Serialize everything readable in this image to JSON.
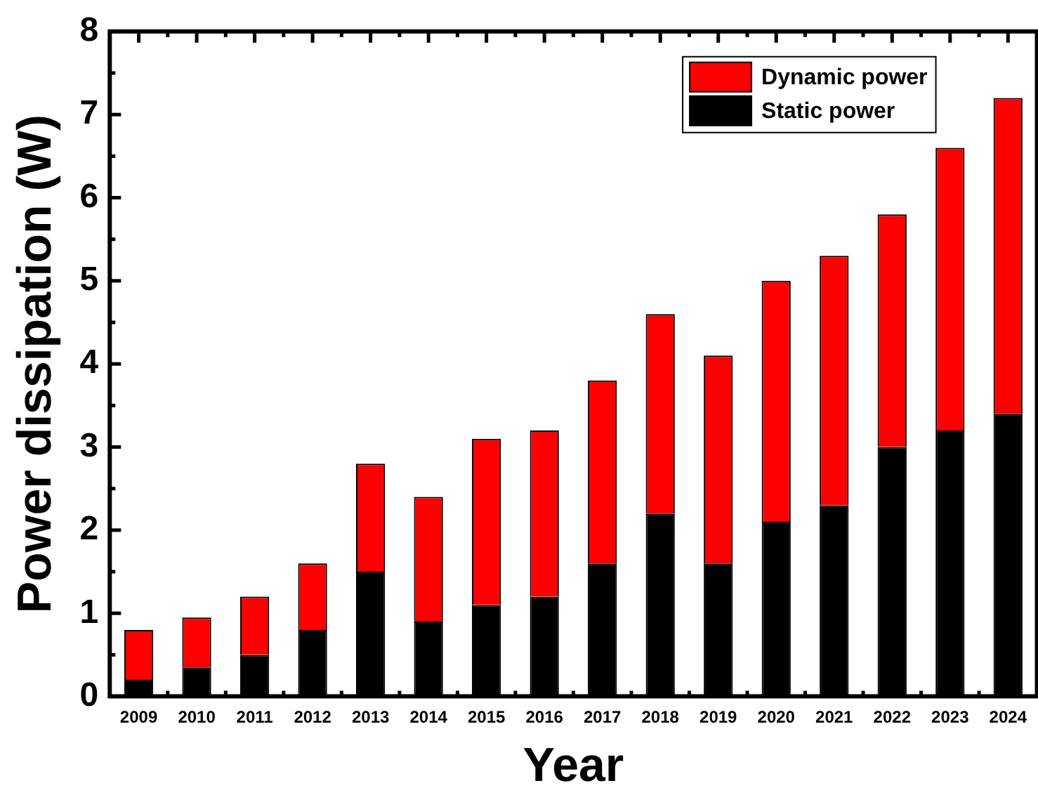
{
  "chart_data": {
    "type": "bar",
    "xlabel": "Year",
    "ylabel": "Power dissipation (W)",
    "categories": [
      "2009",
      "2010",
      "2011",
      "2012",
      "2013",
      "2014",
      "2015",
      "2016",
      "2017",
      "2018",
      "2019",
      "2020",
      "2021",
      "2022",
      "2023",
      "2024"
    ],
    "stacked": true,
    "series": [
      {
        "name": "Static power",
        "color": "#000000",
        "values": [
          0.2,
          0.35,
          0.5,
          0.8,
          1.5,
          0.9,
          1.1,
          1.2,
          1.6,
          2.2,
          1.6,
          2.1,
          2.3,
          3.0,
          3.2,
          3.4
        ]
      },
      {
        "name": "Dynamic power",
        "color": "#ff0000",
        "values": [
          0.6,
          0.6,
          0.7,
          0.8,
          1.3,
          1.5,
          2.0,
          2.0,
          2.2,
          2.4,
          2.5,
          2.9,
          3.0,
          2.8,
          3.4,
          3.8
        ]
      }
    ],
    "ylim": [
      0,
      8
    ],
    "yticks": [
      0,
      1,
      2,
      3,
      4,
      5,
      6,
      7,
      8
    ],
    "grid": false,
    "legend": "top right"
  }
}
